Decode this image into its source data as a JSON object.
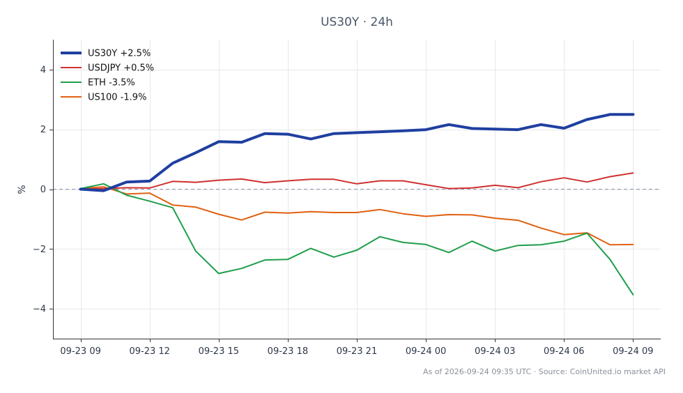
{
  "chart_data": {
    "type": "line",
    "title": "US30Y · 24h",
    "ylabel": "%",
    "xlabel": "",
    "ylim": [
      -5,
      5
    ],
    "yticks": [
      -4,
      -2,
      0,
      2,
      4
    ],
    "ytick_labels": [
      "−4",
      "−2",
      "0",
      "2",
      "4"
    ],
    "x_range": [
      -1.2,
      25.2
    ],
    "xticks": [
      0,
      3,
      6,
      9,
      12,
      15,
      18,
      21,
      24
    ],
    "xtick_labels": [
      "09-23 09",
      "09-23 12",
      "09-23 15",
      "09-23 18",
      "09-23 21",
      "09-24 00",
      "09-24 03",
      "09-24 06",
      "09-24 09"
    ],
    "x": [
      0,
      1,
      2,
      3,
      4,
      5,
      6,
      7,
      8,
      9,
      10,
      11,
      12,
      13,
      14,
      15,
      16,
      17,
      18,
      19,
      20,
      21,
      22,
      23,
      24
    ],
    "grid": true,
    "legend_position": "top-left",
    "zero_line": true,
    "series": [
      {
        "name": "US30Y +2.5%",
        "color": "#1f3fa0",
        "width": 4,
        "values": [
          0.0,
          -0.05,
          0.24,
          0.27,
          0.87,
          1.22,
          1.59,
          1.57,
          1.86,
          1.84,
          1.68,
          1.86,
          1.89,
          1.92,
          1.95,
          1.99,
          2.16,
          2.03,
          2.01,
          1.99,
          2.16,
          2.04,
          2.33,
          2.5,
          2.5
        ]
      },
      {
        "name": "USDJPY +0.5%",
        "color": "#d03030",
        "width": 2,
        "values": [
          0.0,
          0.02,
          0.05,
          0.04,
          0.26,
          0.23,
          0.3,
          0.34,
          0.22,
          0.28,
          0.33,
          0.33,
          0.18,
          0.28,
          0.28,
          0.15,
          0.02,
          0.04,
          0.13,
          0.05,
          0.25,
          0.38,
          0.24,
          0.42,
          0.54
        ]
      },
      {
        "name": "ETH -3.5%",
        "color": "#1e9e4a",
        "width": 2,
        "values": [
          0.02,
          0.18,
          -0.2,
          -0.4,
          -0.62,
          -2.07,
          -2.82,
          -2.65,
          -2.37,
          -2.35,
          -1.98,
          -2.27,
          -2.04,
          -1.59,
          -1.78,
          -1.85,
          -2.12,
          -1.74,
          -2.07,
          -1.88,
          -1.86,
          -1.74,
          -1.47,
          -2.35,
          -3.53
        ]
      },
      {
        "name": "US100 -1.9%",
        "color": "#e06010",
        "width": 2,
        "values": [
          0.02,
          0.08,
          -0.16,
          -0.13,
          -0.53,
          -0.6,
          -0.84,
          -1.03,
          -0.77,
          -0.8,
          -0.75,
          -0.78,
          -0.78,
          -0.68,
          -0.82,
          -0.91,
          -0.85,
          -0.86,
          -0.97,
          -1.04,
          -1.3,
          -1.52,
          -1.46,
          -1.86,
          -1.85
        ]
      }
    ]
  },
  "footer": "As of 2026-09-24 09:35 UTC · Source: CoinUnited.io market API"
}
